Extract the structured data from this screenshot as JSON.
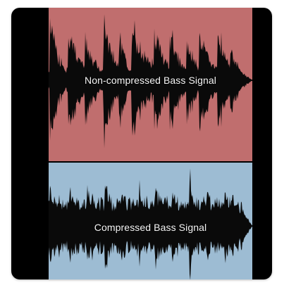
{
  "colors": {
    "frame": "#000000",
    "top_panel": "#c06e6e",
    "bottom_panel": "#9dbcd3",
    "waveform": "#0a0a0a",
    "label_text": "#f4f4f4"
  },
  "panels": [
    {
      "name": "non-compressed",
      "label": "Non-compressed Bass Signal"
    },
    {
      "name": "compressed",
      "label": "Compressed Bass Signal"
    }
  ]
}
